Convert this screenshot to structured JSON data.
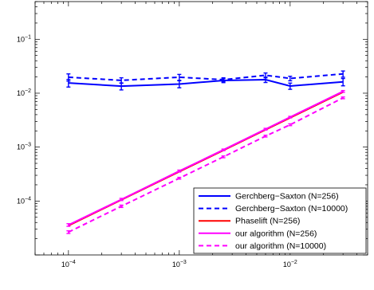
{
  "chart_data": {
    "type": "line",
    "xscale": "log",
    "yscale": "log",
    "xlim": [
      5e-05,
      0.05
    ],
    "ylim": [
      1e-05,
      0.5
    ],
    "xticks": [
      {
        "value": 0.0001,
        "base": "10",
        "exp": "−4"
      },
      {
        "value": 0.001,
        "base": "10",
        "exp": "−3"
      },
      {
        "value": 0.01,
        "base": "10",
        "exp": "−2"
      }
    ],
    "yticks": [
      {
        "value": 0.0001,
        "base": "10",
        "exp": "−4"
      },
      {
        "value": 0.001,
        "base": "10",
        "exp": "−3"
      },
      {
        "value": 0.01,
        "base": "10",
        "exp": "−2"
      },
      {
        "value": 0.1,
        "base": "10",
        "exp": "−1"
      }
    ],
    "grid": false,
    "legend_position": "bottom-right",
    "series": [
      {
        "name": "Gerchberg−Saxton (N=256)",
        "color": "#0000ff",
        "style": "solid",
        "errorbars": true,
        "x": [
          0.0001,
          0.0003,
          0.001,
          0.0025,
          0.006,
          0.01,
          0.03
        ],
        "y": [
          0.0155,
          0.0135,
          0.0148,
          0.0172,
          0.0178,
          0.0136,
          0.0162
        ],
        "err": [
          0.0025,
          0.002,
          0.0022,
          0.0015,
          0.002,
          0.0018,
          0.0025
        ]
      },
      {
        "name": "Gerchberg−Saxton (N=10000)",
        "color": "#0000ff",
        "style": "dashed",
        "errorbars": true,
        "x": [
          0.0001,
          0.0003,
          0.001,
          0.0025,
          0.006,
          0.01,
          0.03
        ],
        "y": [
          0.0198,
          0.0173,
          0.0198,
          0.0178,
          0.0215,
          0.0188,
          0.0228
        ],
        "err": [
          0.003,
          0.002,
          0.0025,
          0.0015,
          0.0022,
          0.0018,
          0.003
        ]
      },
      {
        "name": "Phaselift (N=256)",
        "color": "#ff0000",
        "style": "solid",
        "errorbars": false,
        "x": [
          0.0001,
          0.0003,
          0.001,
          0.0025,
          0.006,
          0.01,
          0.03
        ],
        "y": [
          3.5e-05,
          0.000105,
          0.00035,
          0.00087,
          0.0021,
          0.0035,
          0.0105
        ],
        "err": []
      },
      {
        "name": "our algorithm (N=256)",
        "color": "#ff00ff",
        "style": "solid",
        "errorbars": true,
        "x": [
          0.0001,
          0.0003,
          0.001,
          0.0025,
          0.006,
          0.01,
          0.03
        ],
        "y": [
          3.6e-05,
          0.000107,
          0.00036,
          0.00089,
          0.00215,
          0.0036,
          0.0108
        ],
        "err": [
          2e-06,
          5e-06,
          1.5e-05,
          3e-05,
          8e-05,
          0.00012,
          0.0004
        ]
      },
      {
        "name": "our algorithm (N=10000)",
        "color": "#ff00ff",
        "style": "dashed",
        "errorbars": true,
        "x": [
          0.0001,
          0.0003,
          0.001,
          0.0025,
          0.006,
          0.01,
          0.03
        ],
        "y": [
          2.65e-05,
          8e-05,
          0.000265,
          0.00066,
          0.0016,
          0.0026,
          0.0082
        ],
        "err": [
          1.5e-06,
          4e-06,
          1e-05,
          2.5e-05,
          6e-05,
          0.0001,
          0.0003
        ]
      }
    ]
  }
}
